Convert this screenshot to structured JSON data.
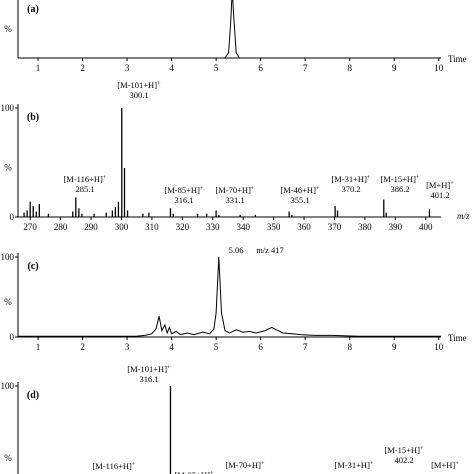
{
  "chart_data": [
    {
      "panel": "(a)",
      "type": "line",
      "xlabel": "Time",
      "ylabel": "%",
      "x_ticks": [
        1,
        2,
        3,
        4,
        5,
        6,
        7,
        8,
        9,
        10
      ],
      "xlim": [
        0.55,
        10.05
      ],
      "ylim": [
        0,
        100
      ],
      "series": [
        {
          "points": [
            [
              0.55,
              0
            ],
            [
              5.2,
              0
            ],
            [
              5.28,
              8
            ],
            [
              5.33,
              55
            ],
            [
              5.36,
              100
            ],
            [
              5.4,
              55
            ],
            [
              5.45,
              8
            ],
            [
              5.52,
              0
            ],
            [
              10.05,
              0
            ]
          ]
        }
      ]
    },
    {
      "panel": "(b)",
      "type": "bar",
      "xlabel": "m/z",
      "ylabel": "%",
      "y_ticks": [
        0,
        100
      ],
      "x_ticks": [
        270,
        280,
        290,
        300,
        310,
        320,
        330,
        340,
        350,
        360,
        370,
        380,
        390,
        400
      ],
      "xlim": [
        266,
        405
      ],
      "ylim": [
        0,
        100
      ],
      "peaks": [
        [
          268,
          4
        ],
        [
          269,
          6
        ],
        [
          270,
          14
        ],
        [
          271,
          10
        ],
        [
          272,
          5
        ],
        [
          273,
          12
        ],
        [
          276,
          3
        ],
        [
          284,
          5
        ],
        [
          285,
          18
        ],
        [
          286,
          8
        ],
        [
          287,
          3
        ],
        [
          291,
          3
        ],
        [
          295,
          4
        ],
        [
          297,
          6
        ],
        [
          298,
          9
        ],
        [
          299,
          14
        ],
        [
          300.1,
          100
        ],
        [
          301,
          45
        ],
        [
          302,
          6
        ],
        [
          307,
          3
        ],
        [
          309,
          4
        ],
        [
          316.1,
          8
        ],
        [
          317,
          3
        ],
        [
          325,
          3
        ],
        [
          328,
          3
        ],
        [
          331.1,
          6
        ],
        [
          332,
          2
        ],
        [
          339,
          2
        ],
        [
          344,
          2
        ],
        [
          355.1,
          5
        ],
        [
          356,
          2
        ],
        [
          370.2,
          10
        ],
        [
          371,
          6
        ],
        [
          386.2,
          16
        ],
        [
          387,
          4
        ],
        [
          401.2,
          7
        ]
      ],
      "annotations": [
        {
          "label": "[M-101+H]+",
          "mz": "300.1",
          "x": 300.1
        },
        {
          "label": "[M-116+H]+",
          "mz": "285.1",
          "x": 285.1
        },
        {
          "label": "[M-85+H]+",
          "mz": "316.1",
          "x": 316.1
        },
        {
          "label": "[M-70+H]+",
          "mz": "331.1",
          "x": 331.1
        },
        {
          "label": "[M-46+H]+",
          "mz": "355.1",
          "x": 355.1
        },
        {
          "label": "[M-31+H]+",
          "mz": "370.2",
          "x": 370.2
        },
        {
          "label": "[M-15+H]+",
          "mz": "386.2",
          "x": 386.2
        },
        {
          "label": "[M+H]+",
          "mz": "401.2",
          "x": 401.2
        }
      ]
    },
    {
      "panel": "(c)",
      "type": "line",
      "xlabel": "Time",
      "ylabel": "%",
      "y_ticks": [
        0,
        100
      ],
      "x_ticks": [
        1,
        2,
        3,
        4,
        5,
        6,
        7,
        8,
        9,
        10
      ],
      "xlim": [
        0.55,
        10.05
      ],
      "ylim": [
        0,
        100
      ],
      "peak_label": "5.06",
      "trace_label": "m/z 417",
      "series": [
        {
          "points": [
            [
              0.55,
              1
            ],
            [
              3.2,
              1
            ],
            [
              3.4,
              2
            ],
            [
              3.55,
              4
            ],
            [
              3.65,
              10
            ],
            [
              3.72,
              26
            ],
            [
              3.78,
              8
            ],
            [
              3.85,
              15
            ],
            [
              3.9,
              5
            ],
            [
              3.95,
              12
            ],
            [
              4.0,
              4
            ],
            [
              4.1,
              7
            ],
            [
              4.2,
              3
            ],
            [
              4.35,
              5
            ],
            [
              4.5,
              3
            ],
            [
              4.7,
              6
            ],
            [
              4.85,
              4
            ],
            [
              4.95,
              10
            ],
            [
              5.0,
              30
            ],
            [
              5.06,
              100
            ],
            [
              5.12,
              30
            ],
            [
              5.2,
              8
            ],
            [
              5.3,
              5
            ],
            [
              5.45,
              9
            ],
            [
              5.6,
              6
            ],
            [
              5.75,
              7
            ],
            [
              5.9,
              5
            ],
            [
              6.1,
              8
            ],
            [
              6.25,
              12
            ],
            [
              6.35,
              9
            ],
            [
              6.5,
              5
            ],
            [
              6.7,
              4
            ],
            [
              6.9,
              3
            ],
            [
              7.2,
              2
            ],
            [
              7.6,
              2
            ],
            [
              8.2,
              1
            ],
            [
              10.05,
              1
            ]
          ]
        }
      ]
    },
    {
      "panel": "(d)",
      "type": "bar",
      "xlabel": "",
      "ylabel": "%",
      "y_ticks": [
        0,
        100
      ],
      "xlim": [
        266,
        405
      ],
      "ylim": [
        0,
        100
      ],
      "peaks": [
        [
          316.1,
          100
        ]
      ],
      "annotations": [
        {
          "label": "[M-101+H]+",
          "mz": "316.1",
          "x": 316.1
        },
        {
          "label": "[M-116+H]+",
          "mz": "",
          "x": 301
        },
        {
          "label": "[M-85+H]+",
          "mz": "",
          "x": 332
        },
        {
          "label": "[M-70+H]+",
          "mz": "",
          "x": 347
        },
        {
          "label": "[M-31+H]+",
          "mz": "",
          "x": 386
        },
        {
          "label": "[M-15+H]+",
          "mz": "402.2",
          "x": 402.2
        },
        {
          "label": "[M+H]+",
          "mz": "",
          "x": 417
        }
      ]
    }
  ]
}
